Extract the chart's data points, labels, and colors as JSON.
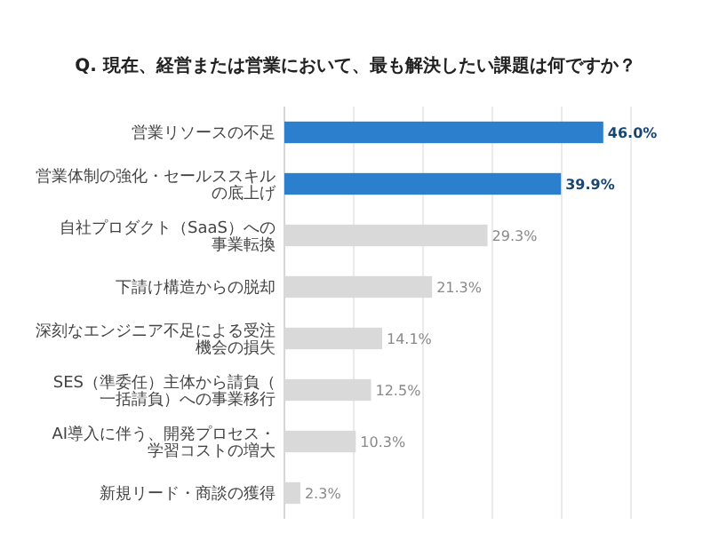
{
  "chart_data": {
    "type": "bar",
    "orientation": "horizontal",
    "title": "Q. 現在、経営または営業において、最も解決したい課題は何ですか？",
    "categories": [
      "営業リソースの不足",
      "営業体制の強化・セールススキルの底上げ",
      "自社プロダクト（SaaS）への事業転換",
      "下請け構造からの脱却",
      "深刻なエンジニア不足による受注機会の損失",
      "SES（準委任）主体から請負（一括請負）への事業移行",
      "AI導入に伴う、開発プロセス・学習コストの増大",
      "新規リード・商談の獲得"
    ],
    "values": [
      46.0,
      39.9,
      29.3,
      21.3,
      14.1,
      12.5,
      10.3,
      2.3
    ],
    "value_labels": [
      "46.0%",
      "39.9%",
      "29.3%",
      "21.3%",
      "14.1%",
      "12.5%",
      "10.3%",
      "2.3%"
    ],
    "colors": [
      "#2b7fcd",
      "#2b7fcd",
      "#d9d9d9",
      "#d9d9d9",
      "#d9d9d9",
      "#d9d9d9",
      "#d9d9d9",
      "#d9d9d9"
    ],
    "xlim": [
      0,
      50
    ],
    "xticks": [
      {
        "value": 0,
        "label": null
      },
      {
        "value": 10,
        "label": null
      },
      {
        "value": 20,
        "label": null
      },
      {
        "value": 30,
        "label": null
      },
      {
        "value": 40,
        "label": null
      },
      {
        "value": 50,
        "label": null
      }
    ],
    "grid": "x",
    "tick_labels": "y"
  }
}
